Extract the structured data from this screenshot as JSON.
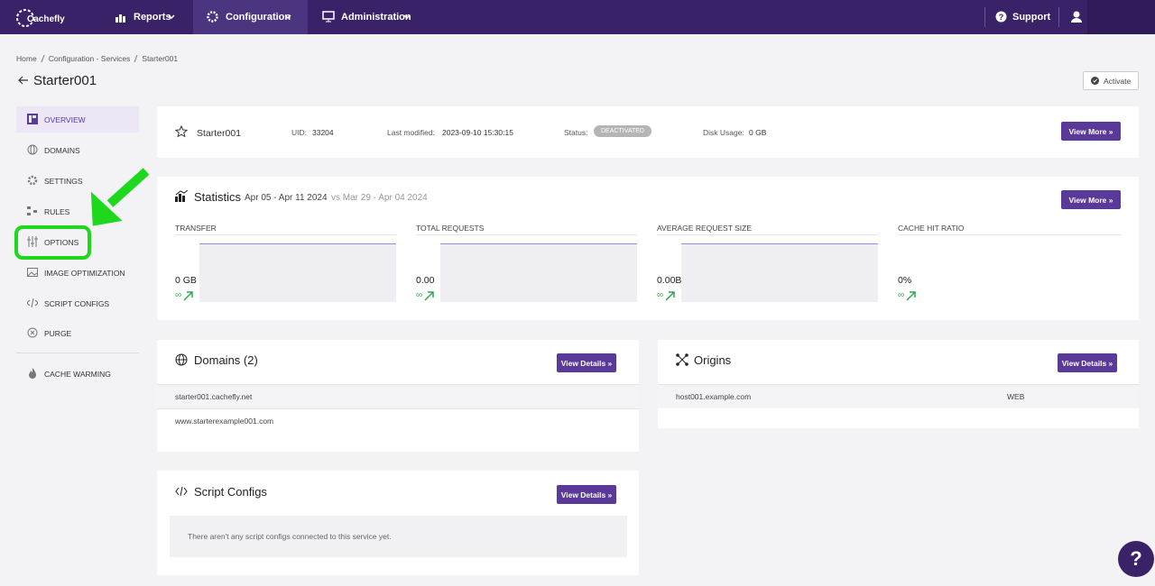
{
  "nav": {
    "logo": "Cachefly",
    "items": [
      "Reports",
      "Configuration",
      "Administration"
    ],
    "support": "Support"
  },
  "breadcrumb": [
    "Home",
    "Configuration - Services",
    "Starter001"
  ],
  "page_title": "Starter001",
  "activate": "Activate",
  "sidebar": [
    "OVERVIEW",
    "DOMAINS",
    "SETTINGS",
    "RULES",
    "OPTIONS",
    "IMAGE OPTIMIZATION",
    "SCRIPT CONFIGS",
    "PURGE",
    "CACHE WARMING"
  ],
  "service": {
    "name": "Starter001",
    "uid_label": "UID:",
    "uid": "33204",
    "modified_label": "Last modified:",
    "modified": "2023-09-10 15:30:15",
    "status_label": "Status:",
    "status": "DEACTIVATED",
    "disk_label": "Disk Usage:",
    "disk": "0 GB",
    "button": "View More »"
  },
  "statistics": {
    "title": "Statistics",
    "range": "Apr 05 - Apr 11 2024",
    "compare": "vs Mar 29 - Apr 04 2024",
    "button": "View More »",
    "metrics": [
      {
        "label": "TRANSFER",
        "value": "0 GB",
        "change": "∞"
      },
      {
        "label": "TOTAL REQUESTS",
        "value": "0.00",
        "change": "∞"
      },
      {
        "label": "AVERAGE REQUEST SIZE",
        "value": "0.00B",
        "change": "∞"
      },
      {
        "label": "CACHE HIT RATIO",
        "value": "0%",
        "change": "∞"
      }
    ]
  },
  "domains": {
    "title": "Domains (2)",
    "button": "View Details »",
    "rows": [
      "starter001.cachefly.net",
      "www.starterexample001.com"
    ]
  },
  "origins": {
    "title": "Origins",
    "button": "View Details »",
    "rows": [
      [
        "host001.example.com",
        "WEB"
      ]
    ]
  },
  "script_configs": {
    "title": "Script Configs",
    "button": "View Details »",
    "empty": "There aren't any script configs connected to this service yet."
  },
  "help": "?"
}
